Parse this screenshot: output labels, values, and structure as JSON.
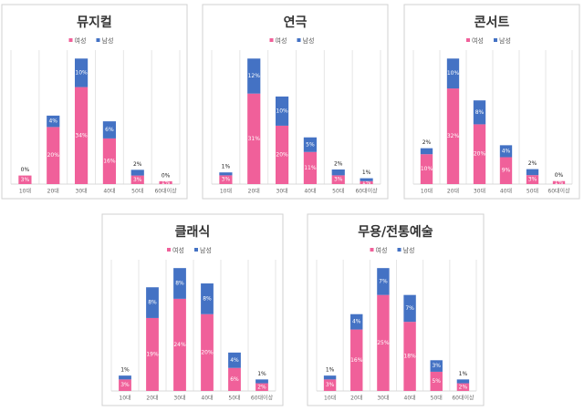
{
  "chart_data": [
    {
      "type": "bar",
      "stacked": true,
      "title": "뮤지컬",
      "categories": [
        "10대",
        "20대",
        "30대",
        "40대",
        "50대",
        "60대이상"
      ],
      "series": [
        {
          "name": "여성",
          "color": "#f0609a",
          "values": [
            3,
            20,
            34,
            16,
            3,
            1
          ],
          "value_labels": [
            "3%",
            "20%",
            "34%",
            "16%",
            "3%",
            "1%"
          ]
        },
        {
          "name": "남성",
          "color": "#4472c4",
          "values": [
            0,
            4,
            10,
            6,
            2,
            0
          ],
          "value_labels": [
            "0%",
            "4%",
            "10%",
            "6%",
            "2%",
            "0%"
          ]
        }
      ]
    },
    {
      "type": "bar",
      "stacked": true,
      "title": "연극",
      "categories": [
        "10대",
        "20대",
        "30대",
        "40대",
        "50대",
        "60대이상"
      ],
      "series": [
        {
          "name": "여성",
          "color": "#f0609a",
          "values": [
            3,
            31,
            20,
            11,
            3,
            1
          ],
          "value_labels": [
            "3%",
            "31%",
            "20%",
            "11%",
            "3%",
            "1%"
          ]
        },
        {
          "name": "남성",
          "color": "#4472c4",
          "values": [
            1,
            12,
            10,
            5,
            2,
            1
          ],
          "value_labels": [
            "1%",
            "12%",
            "10%",
            "5%",
            "2%",
            "1%"
          ]
        }
      ]
    },
    {
      "type": "bar",
      "stacked": true,
      "title": "콘서트",
      "categories": [
        "10대",
        "20대",
        "30대",
        "40대",
        "50대",
        "60대이상"
      ],
      "series": [
        {
          "name": "여성",
          "color": "#f0609a",
          "values": [
            10,
            32,
            20,
            9,
            3,
            1
          ],
          "value_labels": [
            "10%",
            "32%",
            "20%",
            "9%",
            "3%",
            "1%"
          ]
        },
        {
          "name": "남성",
          "color": "#4472c4",
          "values": [
            2,
            10,
            8,
            4,
            2,
            0
          ],
          "value_labels": [
            "2%",
            "10%",
            "8%",
            "4%",
            "2%",
            "0%"
          ]
        }
      ]
    },
    {
      "type": "bar",
      "stacked": true,
      "title": "클래식",
      "categories": [
        "10대",
        "20대",
        "30대",
        "40대",
        "50대",
        "60대이상"
      ],
      "series": [
        {
          "name": "여성",
          "color": "#f0609a",
          "values": [
            3,
            19,
            24,
            20,
            6,
            2
          ],
          "value_labels": [
            "3%",
            "19%",
            "24%",
            "20%",
            "6%",
            "2%"
          ]
        },
        {
          "name": "남성",
          "color": "#4472c4",
          "values": [
            1,
            8,
            8,
            8,
            4,
            1
          ],
          "value_labels": [
            "1%",
            "8%",
            "8%",
            "8%",
            "4%",
            "1%"
          ]
        }
      ]
    },
    {
      "type": "bar",
      "stacked": true,
      "title": "무용/전통예술",
      "categories": [
        "10대",
        "20대",
        "30대",
        "40대",
        "50대",
        "60대이상"
      ],
      "series": [
        {
          "name": "여성",
          "color": "#f0609a",
          "values": [
            3,
            16,
            25,
            18,
            5,
            2
          ],
          "value_labels": [
            "3%",
            "16%",
            "25%",
            "18%",
            "5%",
            "2%"
          ]
        },
        {
          "name": "남성",
          "color": "#4472c4",
          "values": [
            1,
            4,
            7,
            7,
            3,
            1
          ],
          "value_labels": [
            "1%",
            "4%",
            "7%",
            "7%",
            "3%",
            "1%"
          ]
        }
      ]
    }
  ]
}
